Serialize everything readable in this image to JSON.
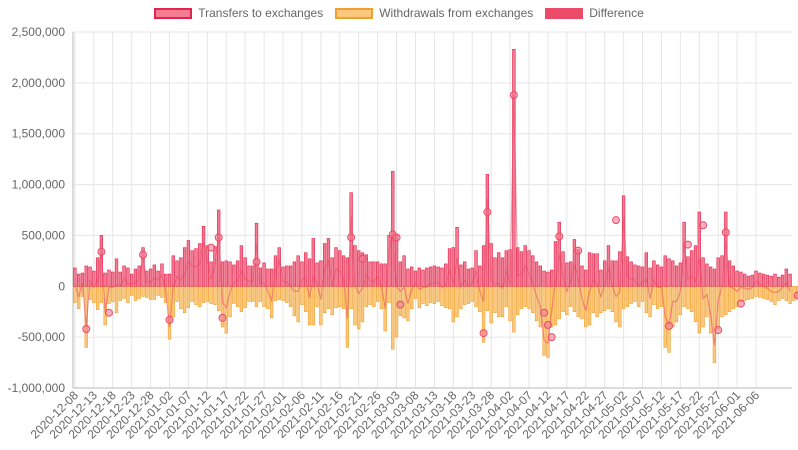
{
  "colors": {
    "transfers_fill": "#f47c93",
    "transfers_stroke": "#e0244e",
    "withdrawals_fill": "#fbc97e",
    "withdrawals_stroke": "#f0a030",
    "difference": "#e94b68",
    "grid": "#e6e6e6",
    "axis": "#b8b8b8"
  },
  "chart_data": {
    "type": "bar",
    "legend": [
      {
        "name": "Transfers to exchanges",
        "swatch": "transfers"
      },
      {
        "name": "Withdrawals from exchanges",
        "swatch": "withdrawals"
      },
      {
        "name": "Difference",
        "swatch": "difference"
      }
    ],
    "y_ticks": [
      "2,500,000",
      "2,000,000",
      "1,500,000",
      "1,000,000",
      "500,000",
      "0",
      "-500,000",
      "-1,000,000"
    ],
    "y_tick_values": [
      2500000,
      2000000,
      1500000,
      1000000,
      500000,
      0,
      -500000,
      -1000000
    ],
    "ylim": [
      -1000000,
      2500000
    ],
    "x_tick_labels": [
      "2020-12-08",
      "2020-12-13",
      "2020-12-18",
      "2020-12-23",
      "2020-12-28",
      "2021-01-02",
      "2021-01-07",
      "2021-01-12",
      "2021-01-17",
      "2021-01-22",
      "2021-01-27",
      "2021-02-01",
      "2021-02-06",
      "2021-02-11",
      "2021-02-16",
      "2021-02-21",
      "2021-02-26",
      "2021-03-03",
      "2021-03-08",
      "2021-03-13",
      "2021-03-18",
      "2021-03-23",
      "2021-03-28",
      "2021-04-02",
      "2021-04-07",
      "2021-04-12",
      "2021-04-17",
      "2021-04-22",
      "2021-04-27",
      "2021-05-02",
      "2021-05-07",
      "2021-05-12",
      "2021-05-17",
      "2021-05-22",
      "2021-05-27",
      "2021-06-01",
      "2021-06-06"
    ],
    "x_start": "2020-12-08",
    "x_tick_step_days": 5,
    "series": [
      {
        "name": "Transfers to exchanges",
        "values": [
          180000,
          120000,
          130000,
          200000,
          190000,
          150000,
          280000,
          500000,
          130000,
          160000,
          140000,
          270000,
          140000,
          200000,
          180000,
          120000,
          170000,
          200000,
          380000,
          150000,
          170000,
          210000,
          150000,
          220000,
          120000,
          120000,
          300000,
          250000,
          280000,
          380000,
          450000,
          350000,
          370000,
          420000,
          590000,
          400000,
          240000,
          390000,
          750000,
          240000,
          250000,
          240000,
          210000,
          250000,
          400000,
          280000,
          200000,
          200000,
          620000,
          180000,
          230000,
          170000,
          170000,
          300000,
          380000,
          190000,
          200000,
          200000,
          240000,
          300000,
          240000,
          330000,
          270000,
          470000,
          230000,
          250000,
          420000,
          470000,
          280000,
          380000,
          350000,
          300000,
          280000,
          920000,
          400000,
          350000,
          330000,
          310000,
          240000,
          240000,
          240000,
          220000,
          220000,
          500000,
          1130000,
          500000,
          240000,
          300000,
          170000,
          190000,
          150000,
          180000,
          160000,
          180000,
          190000,
          200000,
          190000,
          180000,
          220000,
          370000,
          380000,
          580000,
          210000,
          240000,
          170000,
          180000,
          350000,
          200000,
          400000,
          1100000,
          420000,
          280000,
          330000,
          280000,
          350000,
          360000,
          2330000,
          380000,
          340000,
          400000,
          350000,
          300000,
          240000,
          200000,
          150000,
          140000,
          160000,
          440000,
          630000,
          340000,
          230000,
          240000,
          460000,
          360000,
          200000,
          160000,
          330000,
          320000,
          320000,
          160000,
          250000,
          400000,
          250000,
          250000,
          340000,
          890000,
          290000,
          240000,
          210000,
          200000,
          190000,
          330000,
          180000,
          250000,
          210000,
          190000,
          300000,
          270000,
          250000,
          200000,
          230000,
          630000,
          290000,
          350000,
          400000,
          730000,
          280000,
          220000,
          190000,
          170000,
          280000,
          300000,
          730000,
          250000,
          200000,
          150000,
          140000,
          120000,
          100000,
          110000,
          150000,
          130000,
          120000,
          110000,
          100000,
          120000,
          90000,
          110000,
          170000,
          120000
        ]
      },
      {
        "name": "Withdrawals from exchanges",
        "values": [
          -160000,
          -220000,
          -100000,
          -600000,
          -130000,
          -160000,
          -230000,
          -160000,
          -380000,
          -170000,
          -150000,
          -260000,
          -140000,
          -120000,
          -160000,
          -90000,
          -140000,
          -120000,
          -100000,
          -110000,
          -130000,
          -130000,
          -90000,
          -110000,
          -160000,
          -520000,
          -300000,
          -150000,
          -220000,
          -260000,
          -210000,
          -150000,
          -180000,
          -200000,
          -160000,
          -150000,
          -170000,
          -180000,
          -240000,
          -400000,
          -460000,
          -300000,
          -170000,
          -200000,
          -250000,
          -210000,
          -150000,
          -150000,
          -200000,
          -150000,
          -200000,
          -220000,
          -310000,
          -140000,
          -130000,
          -140000,
          -160000,
          -200000,
          -290000,
          -350000,
          -180000,
          -250000,
          -380000,
          -380000,
          -200000,
          -380000,
          -260000,
          -220000,
          -280000,
          -210000,
          -200000,
          -220000,
          -600000,
          -220000,
          -380000,
          -420000,
          -350000,
          -200000,
          -180000,
          -200000,
          -150000,
          -220000,
          -440000,
          -160000,
          -620000,
          -500000,
          -290000,
          -310000,
          -340000,
          -220000,
          -120000,
          -210000,
          -170000,
          -190000,
          -160000,
          -170000,
          -150000,
          -190000,
          -210000,
          -220000,
          -350000,
          -300000,
          -220000,
          -180000,
          -170000,
          -150000,
          -200000,
          -250000,
          -550000,
          -240000,
          -360000,
          -260000,
          -300000,
          -300000,
          -200000,
          -340000,
          -450000,
          -280000,
          -220000,
          -200000,
          -220000,
          -260000,
          -340000,
          -400000,
          -680000,
          -700000,
          -400000,
          -380000,
          -320000,
          -250000,
          -280000,
          -200000,
          -250000,
          -300000,
          -320000,
          -400000,
          -380000,
          -260000,
          -300000,
          -260000,
          -240000,
          -220000,
          -250000,
          -350000,
          -400000,
          -220000,
          -200000,
          -170000,
          -150000,
          -200000,
          -150000,
          -260000,
          -300000,
          -180000,
          -220000,
          -200000,
          -600000,
          -650000,
          -400000,
          -350000,
          -280000,
          -200000,
          -220000,
          -250000,
          -350000,
          -460000,
          -400000,
          -300000,
          -460000,
          -750000,
          -420000,
          -300000,
          -280000,
          -250000,
          -220000,
          -200000,
          -150000,
          -140000,
          -130000,
          -120000,
          -100000,
          -110000,
          -120000,
          -130000,
          -150000,
          -180000,
          -140000,
          -120000,
          -140000,
          -170000,
          -140000,
          -110000
        ]
      }
    ],
    "difference_points": [
      {
        "index": 3,
        "value": -420000
      },
      {
        "index": 7,
        "value": 340000
      },
      {
        "index": 9,
        "value": -260000
      },
      {
        "index": 18,
        "value": 310000
      },
      {
        "index": 25,
        "value": -330000
      },
      {
        "index": 36,
        "value": 380000
      },
      {
        "index": 38,
        "value": 480000
      },
      {
        "index": 39,
        "value": -310000
      },
      {
        "index": 48,
        "value": 240000
      },
      {
        "index": 73,
        "value": 480000
      },
      {
        "index": 76,
        "value": 270000
      },
      {
        "index": 84,
        "value": 510000
      },
      {
        "index": 85,
        "value": 480000
      },
      {
        "index": 86,
        "value": -180000
      },
      {
        "index": 108,
        "value": -460000
      },
      {
        "index": 109,
        "value": 730000
      },
      {
        "index": 116,
        "value": 1880000
      },
      {
        "index": 124,
        "value": -260000
      },
      {
        "index": 125,
        "value": -380000
      },
      {
        "index": 126,
        "value": -500000
      },
      {
        "index": 128,
        "value": 490000
      },
      {
        "index": 133,
        "value": 350000
      },
      {
        "index": 143,
        "value": 650000
      },
      {
        "index": 157,
        "value": -390000
      },
      {
        "index": 162,
        "value": 410000
      },
      {
        "index": 166,
        "value": 600000
      },
      {
        "index": 170,
        "value": -430000
      },
      {
        "index": 172,
        "value": 530000
      },
      {
        "index": 176,
        "value": -170000
      },
      {
        "index": 191,
        "value": -90000
      }
    ]
  }
}
